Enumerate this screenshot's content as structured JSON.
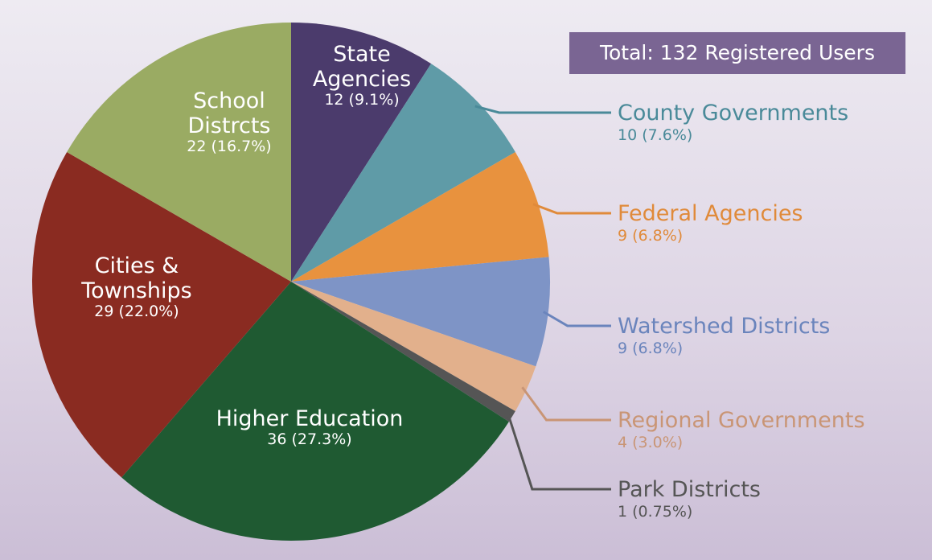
{
  "chart_data": {
    "type": "pie",
    "annotation": "Total: 132 Registered Users",
    "categories": [
      "State Agencies",
      "County Governments",
      "Federal Agencies",
      "Watershed Districts",
      "Regional Governments",
      "Park Districts",
      "Higher Education",
      "Cities & Townships",
      "School Distrcts"
    ],
    "values": [
      12,
      10,
      9,
      9,
      4,
      1,
      36,
      29,
      22
    ],
    "value_labels": [
      "12 (9.1%)",
      "10 (7.6%)",
      "9 (6.8%)",
      "9 (6.8%)",
      "4 (3.0%)",
      "1 (0.75%)",
      "36 (27.3%)",
      "29 (22.0%)",
      "22 (16.7%)"
    ],
    "colors": [
      "#4b3b6c",
      "#5f9ba7",
      "#e8923e",
      "#7e94c6",
      "#e2b08c",
      "#555555",
      "#1f5a32",
      "#8a2b21",
      "#9aab63"
    ]
  }
}
